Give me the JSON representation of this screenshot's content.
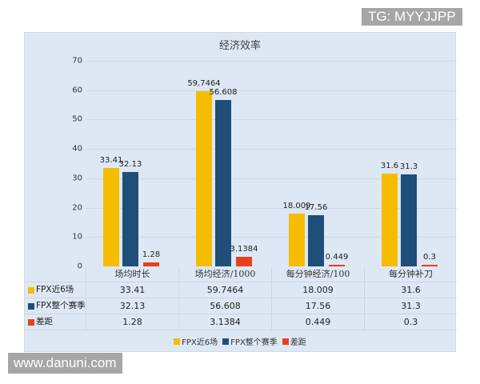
{
  "watermarks": {
    "top_right": "TG: MYYJJPP",
    "bottom_left": "www.danuni.com"
  },
  "colors": {
    "recent6": "#f5bd00",
    "season": "#1f4e79",
    "diff": "#e8401f"
  },
  "chart_data": {
    "type": "bar",
    "title": "经济效率",
    "categories": [
      "场均时长",
      "场均经济/1000",
      "每分钟经济/100",
      "每分钟补刀"
    ],
    "series": [
      {
        "name": "FPX近6场",
        "values": [
          33.41,
          59.7464,
          18.009,
          31.6
        ],
        "labels": [
          "33.41",
          "59.7464",
          "18.009",
          "31.6"
        ]
      },
      {
        "name": "FPX整个赛季",
        "values": [
          32.13,
          56.608,
          17.56,
          31.3
        ],
        "labels": [
          "32.13",
          "56.608",
          "17.56",
          "31.3"
        ]
      },
      {
        "name": "差距",
        "values": [
          1.28,
          3.1384,
          0.449,
          0.3
        ],
        "labels": [
          "1.28",
          "3.1384",
          "0.449",
          "0.3"
        ]
      }
    ],
    "yticks": [
      "0",
      "10",
      "20",
      "30",
      "40",
      "50",
      "60",
      "70"
    ],
    "ylim": [
      0,
      70
    ],
    "xlabel": "",
    "ylabel": "",
    "grid": true,
    "legend_position": "bottom",
    "data_table": true
  }
}
